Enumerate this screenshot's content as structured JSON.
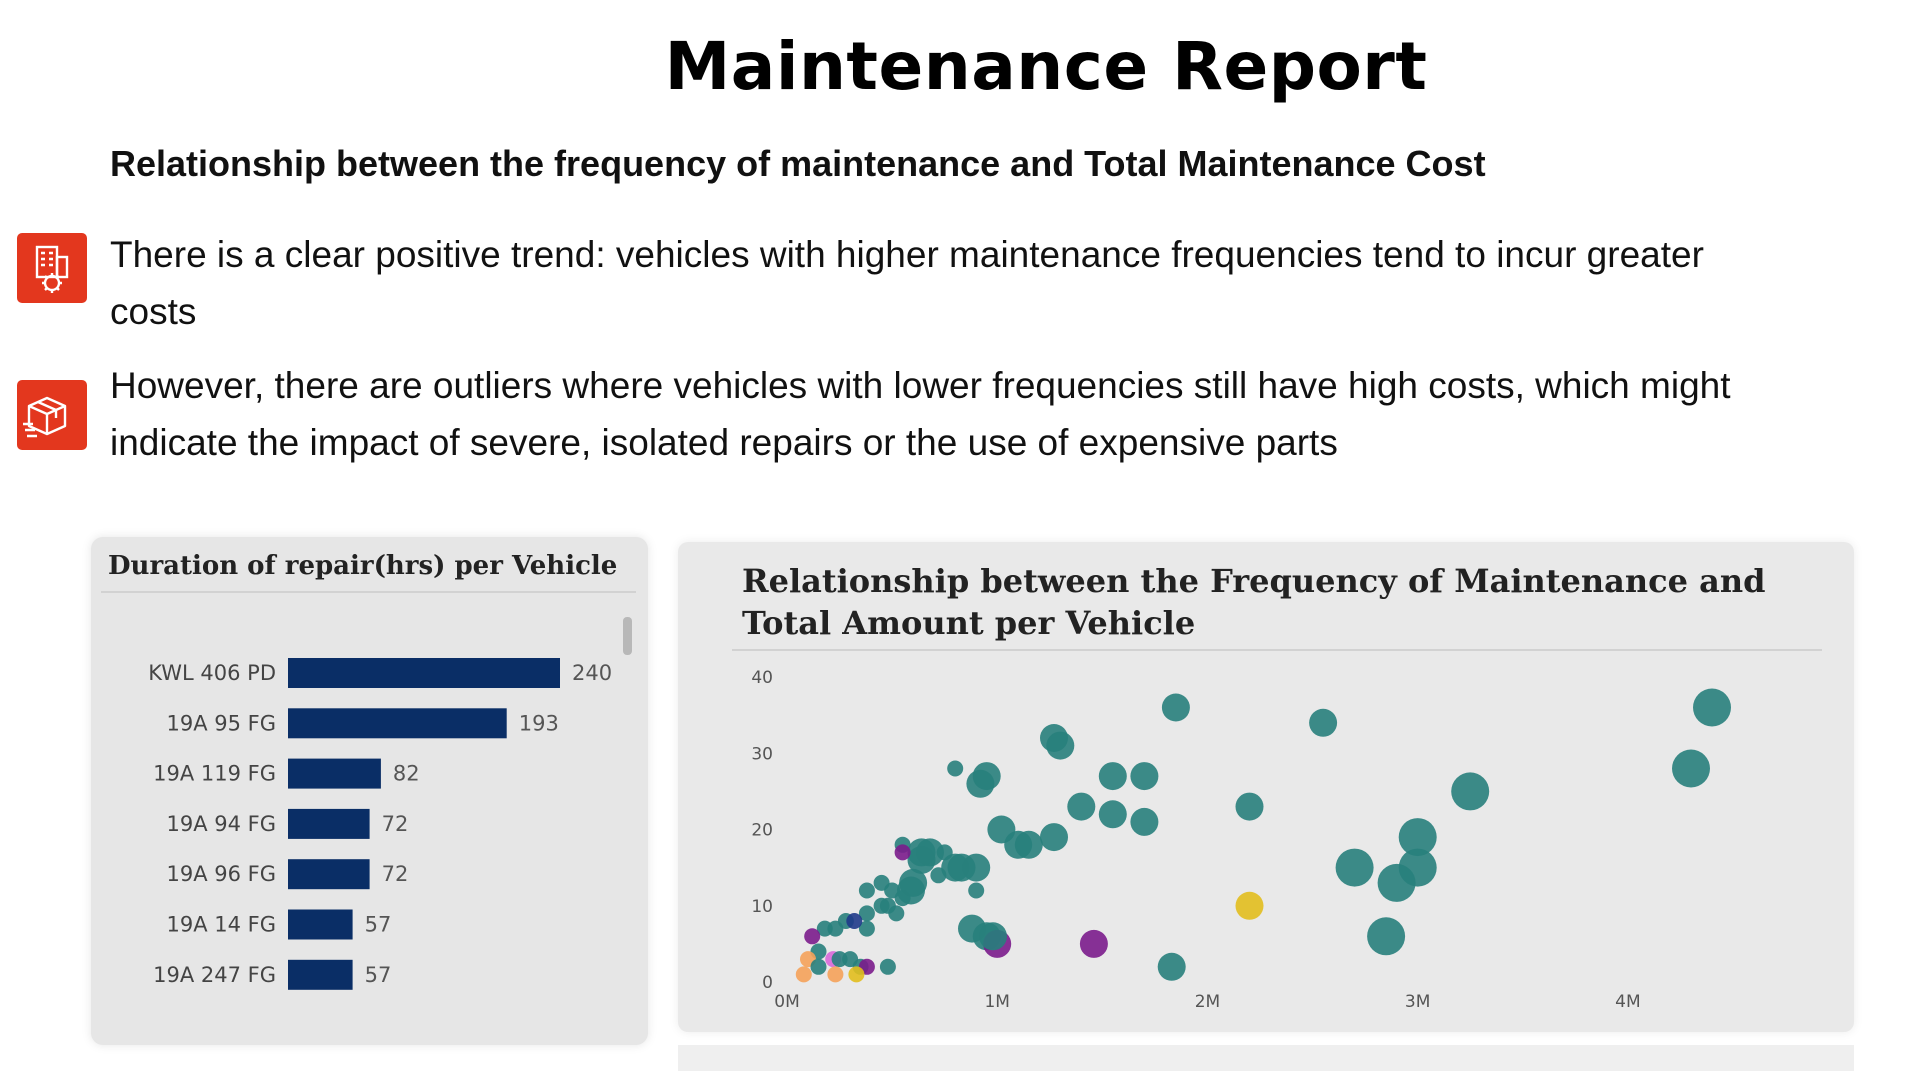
{
  "header": {
    "title": "Maintenance Report",
    "subtitle": "Relationship between the frequency of maintenance and Total Maintenance Cost"
  },
  "bullets": [
    {
      "icon": "building-gear-icon",
      "text": "There is a clear positive trend: vehicles with higher maintenance frequencies tend to incur greater costs"
    },
    {
      "icon": "delivery-box-icon",
      "text": "However, there are outliers where vehicles with lower frequencies still have high costs, which might indicate the impact of severe, isolated repairs or the use of expensive parts"
    }
  ],
  "colors": {
    "accent": "#e3371e",
    "bar": "#0a2e66",
    "teal": "#287f7c",
    "yellow": "#e2be1e",
    "purple": "#7b1c8c"
  },
  "chart_data": [
    {
      "type": "bar",
      "orientation": "horizontal",
      "title": "Duration of repair(hrs) per Vehicle",
      "categories": [
        "KWL 406 PD",
        "19A 95 FG",
        "19A 119 FG",
        "19A 94 FG",
        "19A 96 FG",
        "19A 14 FG",
        "19A 247 FG"
      ],
      "values": [
        240,
        193,
        82,
        72,
        72,
        57,
        57
      ],
      "xlim": [
        0,
        240
      ]
    },
    {
      "type": "scatter",
      "title": "Relationship between the Frequency of Maintenance and Total Amount per Vehicle",
      "xlabel": "",
      "ylabel": "",
      "xlim": [
        0,
        4500000
      ],
      "ylim": [
        0,
        40
      ],
      "x_ticks": [
        "0M",
        "1M",
        "2M",
        "3M",
        "4M"
      ],
      "x_tick_values": [
        0,
        1000000,
        2000000,
        3000000,
        4000000
      ],
      "y_ticks": [
        "0",
        "10",
        "20",
        "30",
        "40"
      ],
      "y_tick_values": [
        0,
        10,
        20,
        30,
        40
      ],
      "points": [
        {
          "x": 4400000,
          "y": 36,
          "size": 3,
          "color": "teal"
        },
        {
          "x": 4300000,
          "y": 28,
          "size": 3,
          "color": "teal"
        },
        {
          "x": 1850000,
          "y": 36,
          "size": 2,
          "color": "teal"
        },
        {
          "x": 2550000,
          "y": 34,
          "size": 2,
          "color": "teal"
        },
        {
          "x": 1270000,
          "y": 32,
          "size": 2,
          "color": "teal"
        },
        {
          "x": 1300000,
          "y": 31,
          "size": 2,
          "color": "teal"
        },
        {
          "x": 800000,
          "y": 28,
          "size": 1,
          "color": "teal"
        },
        {
          "x": 950000,
          "y": 27,
          "size": 2,
          "color": "teal"
        },
        {
          "x": 920000,
          "y": 26,
          "size": 2,
          "color": "teal"
        },
        {
          "x": 1550000,
          "y": 27,
          "size": 2,
          "color": "teal"
        },
        {
          "x": 1700000,
          "y": 27,
          "size": 2,
          "color": "teal"
        },
        {
          "x": 3250000,
          "y": 25,
          "size": 3,
          "color": "teal"
        },
        {
          "x": 2200000,
          "y": 23,
          "size": 2,
          "color": "teal"
        },
        {
          "x": 1400000,
          "y": 23,
          "size": 2,
          "color": "teal"
        },
        {
          "x": 1550000,
          "y": 22,
          "size": 2,
          "color": "teal"
        },
        {
          "x": 1700000,
          "y": 21,
          "size": 2,
          "color": "teal"
        },
        {
          "x": 1020000,
          "y": 20,
          "size": 2,
          "color": "teal"
        },
        {
          "x": 1270000,
          "y": 19,
          "size": 2,
          "color": "teal"
        },
        {
          "x": 1100000,
          "y": 18,
          "size": 2,
          "color": "teal"
        },
        {
          "x": 1150000,
          "y": 18,
          "size": 2,
          "color": "teal"
        },
        {
          "x": 3000000,
          "y": 19,
          "size": 3,
          "color": "teal"
        },
        {
          "x": 2700000,
          "y": 15,
          "size": 3,
          "color": "teal"
        },
        {
          "x": 3000000,
          "y": 15,
          "size": 3,
          "color": "teal"
        },
        {
          "x": 2900000,
          "y": 13,
          "size": 3,
          "color": "teal"
        },
        {
          "x": 2850000,
          "y": 6,
          "size": 3,
          "color": "teal"
        },
        {
          "x": 2200000,
          "y": 10,
          "size": 2,
          "color": "yellow"
        },
        {
          "x": 1460000,
          "y": 5,
          "size": 2,
          "color": "purple"
        },
        {
          "x": 1830000,
          "y": 2,
          "size": 2,
          "color": "teal"
        },
        {
          "x": 750000,
          "y": 17,
          "size": 1,
          "color": "teal"
        },
        {
          "x": 680000,
          "y": 17,
          "size": 2,
          "color": "teal"
        },
        {
          "x": 640000,
          "y": 16,
          "size": 2,
          "color": "teal"
        },
        {
          "x": 640000,
          "y": 17,
          "size": 2,
          "color": "teal"
        },
        {
          "x": 550000,
          "y": 18,
          "size": 1,
          "color": "teal"
        },
        {
          "x": 550000,
          "y": 17,
          "size": 1,
          "color": "purple"
        },
        {
          "x": 800000,
          "y": 15,
          "size": 2,
          "color": "teal"
        },
        {
          "x": 900000,
          "y": 15,
          "size": 2,
          "color": "teal"
        },
        {
          "x": 830000,
          "y": 15,
          "size": 2,
          "color": "teal"
        },
        {
          "x": 720000,
          "y": 14,
          "size": 1,
          "color": "teal"
        },
        {
          "x": 900000,
          "y": 12,
          "size": 1,
          "color": "teal"
        },
        {
          "x": 600000,
          "y": 13,
          "size": 2,
          "color": "teal"
        },
        {
          "x": 590000,
          "y": 12,
          "size": 2,
          "color": "teal"
        },
        {
          "x": 450000,
          "y": 13,
          "size": 1,
          "color": "teal"
        },
        {
          "x": 500000,
          "y": 12,
          "size": 1,
          "color": "teal"
        },
        {
          "x": 380000,
          "y": 12,
          "size": 1,
          "color": "teal"
        },
        {
          "x": 550000,
          "y": 11,
          "size": 1,
          "color": "teal"
        },
        {
          "x": 450000,
          "y": 10,
          "size": 1,
          "color": "teal"
        },
        {
          "x": 480000,
          "y": 10,
          "size": 1,
          "color": "teal"
        },
        {
          "x": 520000,
          "y": 9,
          "size": 1,
          "color": "teal"
        },
        {
          "x": 380000,
          "y": 9,
          "size": 1,
          "color": "teal"
        },
        {
          "x": 380000,
          "y": 7,
          "size": 1,
          "color": "teal"
        },
        {
          "x": 280000,
          "y": 8,
          "size": 1,
          "color": "teal"
        },
        {
          "x": 180000,
          "y": 7,
          "size": 1,
          "color": "teal"
        },
        {
          "x": 230000,
          "y": 7,
          "size": 1,
          "color": "teal"
        },
        {
          "x": 120000,
          "y": 6,
          "size": 1,
          "color": "purple"
        },
        {
          "x": 320000,
          "y": 8,
          "size": 1,
          "color": "navy"
        },
        {
          "x": 150000,
          "y": 4,
          "size": 1,
          "color": "teal"
        },
        {
          "x": 220000,
          "y": 3,
          "size": 1,
          "color": "pink"
        },
        {
          "x": 250000,
          "y": 3,
          "size": 1,
          "color": "teal"
        },
        {
          "x": 300000,
          "y": 3,
          "size": 1,
          "color": "teal"
        },
        {
          "x": 100000,
          "y": 3,
          "size": 1,
          "color": "orange"
        },
        {
          "x": 150000,
          "y": 2,
          "size": 1,
          "color": "teal"
        },
        {
          "x": 80000,
          "y": 1,
          "size": 1,
          "color": "orange"
        },
        {
          "x": 230000,
          "y": 1,
          "size": 1,
          "color": "orange"
        },
        {
          "x": 350000,
          "y": 2,
          "size": 1,
          "color": "teal"
        },
        {
          "x": 380000,
          "y": 2,
          "size": 1,
          "color": "purple"
        },
        {
          "x": 330000,
          "y": 1,
          "size": 1,
          "color": "yellow"
        },
        {
          "x": 480000,
          "y": 2,
          "size": 1,
          "color": "teal"
        },
        {
          "x": 950000,
          "y": 6,
          "size": 2,
          "color": "teal"
        },
        {
          "x": 1000000,
          "y": 5,
          "size": 2,
          "color": "purple"
        },
        {
          "x": 880000,
          "y": 7,
          "size": 2,
          "color": "teal"
        },
        {
          "x": 980000,
          "y": 6,
          "size": 2,
          "color": "teal"
        }
      ],
      "palette": {
        "teal": "#287f7c",
        "yellow": "#e2be1e",
        "purple": "#7b1c8c",
        "pink": "#d968d9",
        "orange": "#f5a25a",
        "navy": "#1f3a8a"
      }
    }
  ]
}
